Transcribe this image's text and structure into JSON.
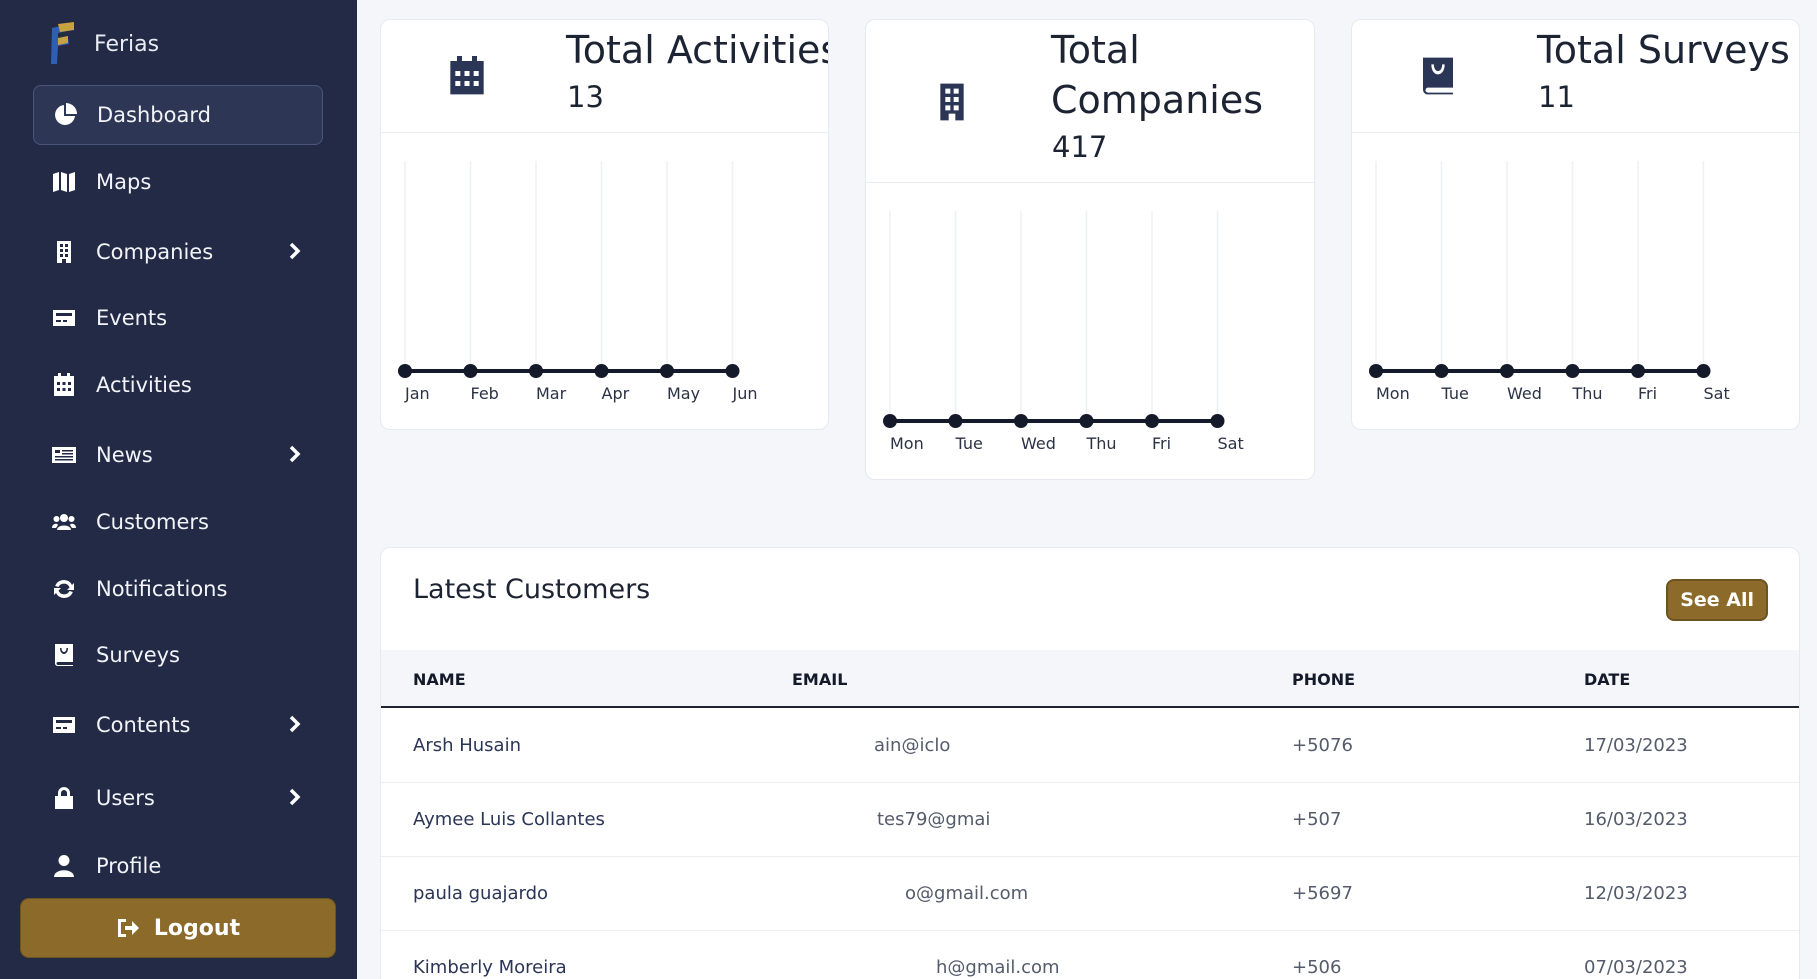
{
  "brand": {
    "name": "Ferias"
  },
  "sidebar": {
    "items": [
      {
        "label": "Dashboard",
        "icon": "pie-chart-icon",
        "active": true,
        "has_submenu": false
      },
      {
        "label": "Maps",
        "icon": "map-icon",
        "active": false,
        "has_submenu": false
      },
      {
        "label": "Companies",
        "icon": "building-icon",
        "active": false,
        "has_submenu": true
      },
      {
        "label": "Events",
        "icon": "card-icon",
        "active": false,
        "has_submenu": false
      },
      {
        "label": "Activities",
        "icon": "calendar-icon",
        "active": false,
        "has_submenu": false
      },
      {
        "label": "News",
        "icon": "newspaper-icon",
        "active": false,
        "has_submenu": true
      },
      {
        "label": "Customers",
        "icon": "users-icon",
        "active": false,
        "has_submenu": false
      },
      {
        "label": "Notifications",
        "icon": "refresh-icon",
        "active": false,
        "has_submenu": false
      },
      {
        "label": "Surveys",
        "icon": "book-icon",
        "active": false,
        "has_submenu": false
      },
      {
        "label": "Contents",
        "icon": "card-icon",
        "active": false,
        "has_submenu": true
      },
      {
        "label": "Users",
        "icon": "lock-icon",
        "active": false,
        "has_submenu": true
      },
      {
        "label": "Profile",
        "icon": "user-icon",
        "active": false,
        "has_submenu": false
      }
    ],
    "logout_label": "Logout"
  },
  "stats": {
    "activities": {
      "title": "Total Activities",
      "value": "13",
      "icon": "calendar-icon"
    },
    "companies": {
      "title": "Total Companies",
      "value": "417",
      "icon": "building-icon"
    },
    "surveys": {
      "title": "Total Surveys",
      "value": "11",
      "icon": "book-icon"
    }
  },
  "chart_data": [
    {
      "type": "line",
      "title": "",
      "categories": [
        "Jan",
        "Feb",
        "Mar",
        "Apr",
        "May",
        "Jun"
      ],
      "values": [
        0,
        0,
        0,
        0,
        0,
        0
      ],
      "grid": true
    },
    {
      "type": "line",
      "title": "",
      "categories": [
        "Mon",
        "Tue",
        "Wed",
        "Thu",
        "Fri",
        "Sat"
      ],
      "values": [
        0,
        0,
        0,
        0,
        0,
        0
      ],
      "grid": true
    },
    {
      "type": "line",
      "title": "",
      "categories": [
        "Mon",
        "Tue",
        "Wed",
        "Thu",
        "Fri",
        "Sat"
      ],
      "values": [
        0,
        0,
        0,
        0,
        0,
        0
      ],
      "grid": true
    }
  ],
  "customers": {
    "title": "Latest Customers",
    "see_all_label": "See All",
    "columns": [
      "NAME",
      "EMAIL",
      "PHONE",
      "DATE"
    ],
    "rows": [
      {
        "name": "Arsh Husain",
        "email": "ain@iclo",
        "phone": "+5076",
        "date": "17/03/2023"
      },
      {
        "name": "Aymee Luis Collantes",
        "email": "tes79@gmai",
        "phone": "+507",
        "date": "16/03/2023"
      },
      {
        "name": "paula guajardo",
        "email": "o@gmail.com",
        "phone": "+5697",
        "date": "12/03/2023"
      },
      {
        "name": "Kimberly Moreira",
        "email": "h@gmail.com",
        "phone": "+506",
        "date": "07/03/2023"
      }
    ]
  },
  "colors": {
    "sidebar": "#222a45",
    "accent": "#8b6a2a",
    "ink": "#141a2a"
  }
}
